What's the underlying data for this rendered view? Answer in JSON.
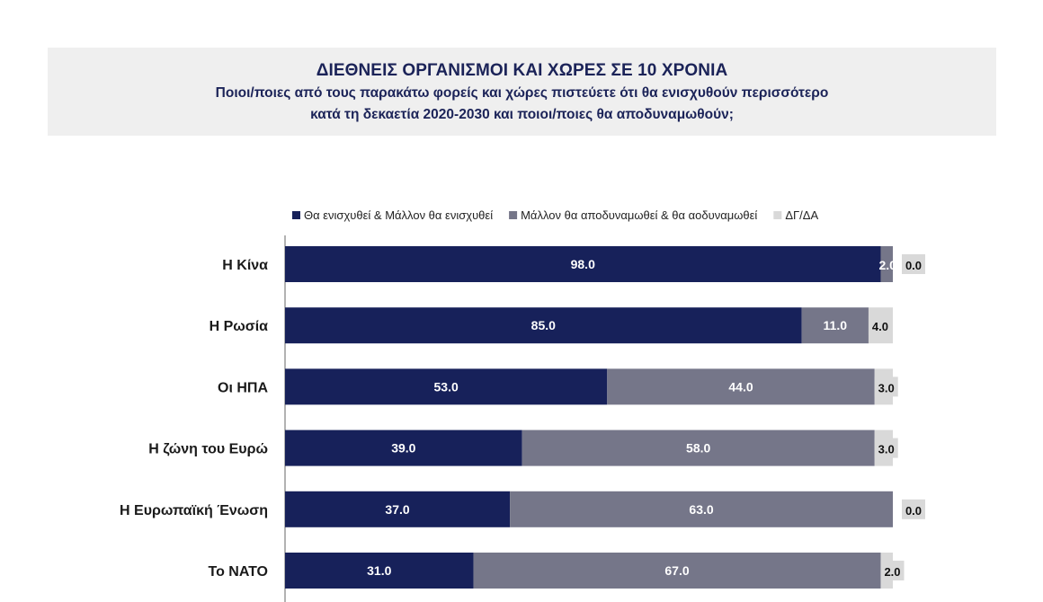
{
  "header": {
    "title": "ΔΙΕΘΝΕΙΣ ΟΡΓΑΝΙΣΜΟΙ ΚΑΙ ΧΩΡΕΣ ΣΕ 10 ΧΡΟΝΙΑ",
    "subtitle_line1": "Ποιοι/ποιες από τους παρακάτω φορείς και χώρες πιστεύετε ότι θα ενισχυθούν περισσότερο",
    "subtitle_line2": "κατά τη δεκαετία 2020-2030 και ποιοι/ποιες θα αποδυναμωθούν;"
  },
  "chart_data": {
    "type": "bar",
    "orientation": "horizontal",
    "stacked": true,
    "categories": [
      "Η Κίνα",
      "Η Ρωσία",
      "Οι ΗΠΑ",
      "Η ζώνη του Ευρώ",
      "Η Ευρωπαϊκή Ένωση",
      "Το ΝΑΤΟ"
    ],
    "series": [
      {
        "name": "Θα ενισχυθεί & Μάλλον θα ενισχυθεί",
        "color": "#17215a",
        "values": [
          98.0,
          85.0,
          53.0,
          39.0,
          37.0,
          31.0
        ]
      },
      {
        "name": "Μάλλον θα αποδυναμωθεί & θα αοδυναμωθεί",
        "color": "#757689",
        "values": [
          2.0,
          11.0,
          44.0,
          58.0,
          63.0,
          67.0
        ]
      },
      {
        "name": "ΔΓ/ΔΑ",
        "color": "#d9d9d9",
        "values": [
          0.0,
          4.0,
          3.0,
          3.0,
          0.0,
          2.0
        ]
      }
    ],
    "xlim": [
      0,
      100
    ],
    "legend_position": "top",
    "grid": false
  }
}
